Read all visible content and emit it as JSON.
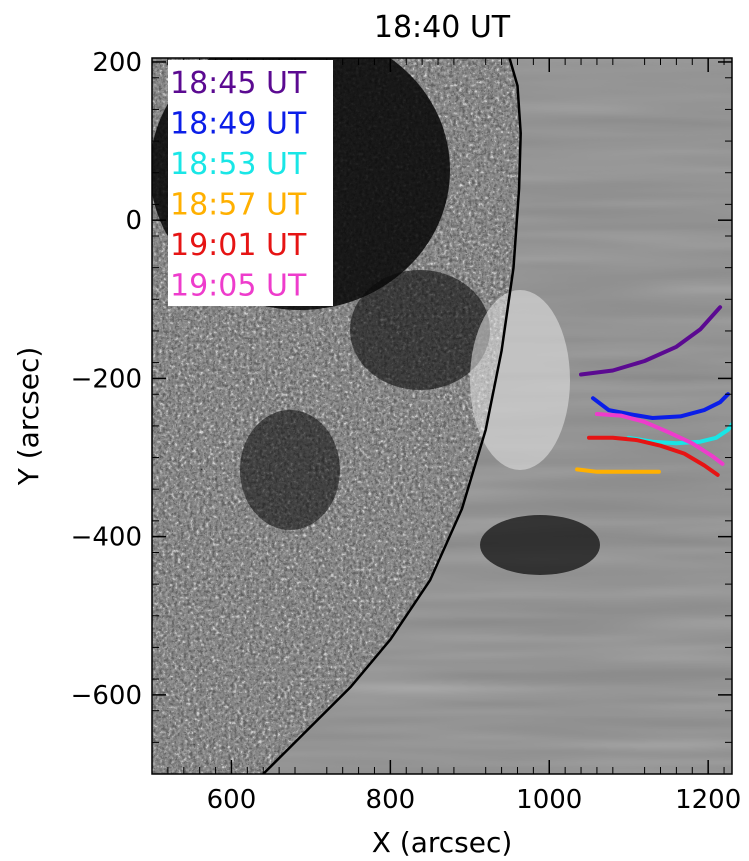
{
  "chart_data": {
    "type": "line",
    "title": "18:40 UT",
    "xlabel": "X (arcsec)",
    "ylabel": "Y (arcsec)",
    "xlim": [
      500,
      1230
    ],
    "ylim": [
      -700,
      205
    ],
    "xticks": [
      600,
      800,
      1000,
      1200
    ],
    "yticks": [
      200,
      0,
      -200,
      -400,
      -600
    ],
    "ytick_labels": [
      "200",
      "0",
      "−200",
      "−400",
      "−600"
    ],
    "legend_position": "top-left",
    "background": "running-difference solar image (grayscale)",
    "limb_curve": {
      "color": "#000000",
      "x": [
        640,
        690,
        750,
        800,
        850,
        890,
        920,
        940,
        955,
        962,
        964,
        960,
        950
      ],
      "y": [
        -700,
        -650,
        -590,
        -530,
        -455,
        -365,
        -265,
        -165,
        -60,
        40,
        110,
        170,
        205
      ]
    },
    "series": [
      {
        "name": "18:45 UT",
        "color": "#5b0a91",
        "x": [
          1040,
          1080,
          1120,
          1160,
          1190,
          1215
        ],
        "y": [
          -195,
          -190,
          -178,
          -160,
          -138,
          -110
        ]
      },
      {
        "name": "18:49 UT",
        "color": "#0b1ee8",
        "x": [
          1055,
          1075,
          1100,
          1130,
          1165,
          1195,
          1215,
          1225
        ],
        "y": [
          -225,
          -240,
          -245,
          -250,
          -248,
          -240,
          -230,
          -220
        ]
      },
      {
        "name": "18:53 UT",
        "color": "#19e6e6",
        "x": [
          1100,
          1130,
          1160,
          1190,
          1210,
          1225,
          1230
        ],
        "y": [
          -275,
          -280,
          -282,
          -280,
          -275,
          -265,
          -258
        ]
      },
      {
        "name": "18:57 UT",
        "color": "#ffb000",
        "x": [
          1035,
          1060,
          1090,
          1120,
          1138
        ],
        "y": [
          -315,
          -318,
          -318,
          -318,
          -318
        ]
      },
      {
        "name": "19:01 UT",
        "color": "#e61414",
        "x": [
          1050,
          1080,
          1110,
          1140,
          1170,
          1195,
          1212
        ],
        "y": [
          -275,
          -275,
          -278,
          -285,
          -295,
          -310,
          -322
        ]
      },
      {
        "name": "19:05 UT",
        "color": "#ee3ccc",
        "x": [
          1060,
          1090,
          1120,
          1150,
          1180,
          1205,
          1218
        ],
        "y": [
          -245,
          -247,
          -255,
          -268,
          -282,
          -298,
          -308
        ]
      }
    ]
  }
}
